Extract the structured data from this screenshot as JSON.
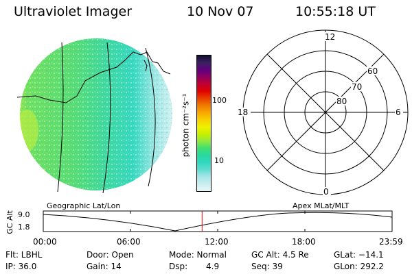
{
  "header": {
    "instrument": "Ultraviolet Imager",
    "date": "10 Nov 07",
    "time": "10:55:18 UT"
  },
  "colorbar": {
    "unit_label": "photon cm⁻²s⁻¹",
    "tick_100": "100",
    "tick_10": "10",
    "colors": [
      "#e8f6f6",
      "#c8eef0",
      "#a8e6e8",
      "#62dcd0",
      "#30d8c0",
      "#28d8a0",
      "#40e070",
      "#90e840",
      "#c8f000",
      "#f0f000",
      "#f8d000",
      "#f8a800",
      "#f07800",
      "#e84000",
      "#e00000",
      "#c00030",
      "#900060",
      "#600080",
      "#3a2060",
      "#101030"
    ]
  },
  "polar": {
    "label_12": "12",
    "label_0": "0",
    "label_18": "18",
    "label_6": "6",
    "label_60": "60",
    "label_70": "70",
    "label_80": "80"
  },
  "timeline": {
    "left_title": "Geographic Lat/Lon",
    "right_title": "Apex MLat/MLT",
    "axis_label": "GC Alt",
    "ytick_top": "9.0",
    "ytick_bottom": "1.8",
    "xticks": [
      "00:00",
      "06:00",
      "12:00",
      "18:00",
      "23:59"
    ],
    "current_fraction": 0.4553,
    "marker_color": "#e00000"
  },
  "info": {
    "flt": "Flt: LBHL",
    "ip": "IP: 36.0",
    "door": "Door: Open",
    "gain": "Gain: 14",
    "mode": "Mode: Normal",
    "dsp_label": "Dsp:",
    "dsp_value": "4.9",
    "gcalt": "GC Alt: 4.5 Re",
    "seq": "Seq: 39",
    "glat": "GLat: −14.1",
    "glon": "GLon: 292.2"
  }
}
